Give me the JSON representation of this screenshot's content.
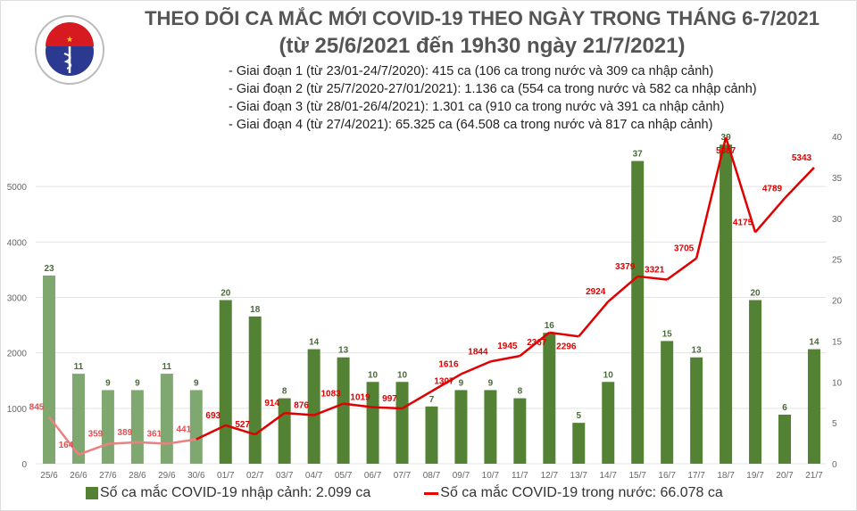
{
  "logo": {
    "text_top": "BỘ Y TẾ",
    "text_bottom": "MINISTRY OF HEALTH"
  },
  "title": {
    "line1": "THEO DÕI CA MẮC MỚI COVID-19 THEO NGÀY TRONG THÁNG 6-7/2021",
    "line2": "(từ 25/6/2021 đến 19h30 ngày 21/7/2021)"
  },
  "notes": [
    "- Giai đoạn 1 (từ 23/01-24/7/2020): 415 ca (106 ca trong nước và 309 ca nhập cảnh)",
    "- Giai đoạn 2 (từ 25/7/2020-27/01/2021): 1.136 ca (554 ca trong nước và 582 ca nhập cảnh)",
    "- Giai đoạn 3 (từ 28/01-26/4/2021): 1.301 ca (910 ca trong nước và 391 ca nhập cảnh)",
    "- Giai đoạn 4 (từ 27/4/2021): 65.325 ca (64.508 ca trong nước và 817 ca nhập cảnh)"
  ],
  "chart_data": {
    "type": "bar+line",
    "categories": [
      "25/6",
      "26/6",
      "27/6",
      "28/6",
      "29/6",
      "30/6",
      "01/7",
      "02/7",
      "03/7",
      "04/7",
      "05/7",
      "06/7",
      "07/7",
      "08/7",
      "09/7",
      "10/7",
      "11/7",
      "12/7",
      "13/7",
      "14/7",
      "15/7",
      "16/7",
      "17/7",
      "18/7",
      "19/7",
      "20/7",
      "21/7"
    ],
    "series": [
      {
        "name": "Số ca mắc COVID-19 nhập cảnh: 2.099 ca",
        "type": "bar",
        "axis": "right",
        "color": "#548235",
        "faded_color": "#7fa870",
        "values": [
          23,
          11,
          9,
          9,
          11,
          9,
          20,
          18,
          8,
          14,
          13,
          10,
          10,
          7,
          9,
          9,
          8,
          16,
          5,
          10,
          37,
          15,
          13,
          39,
          20,
          6,
          14
        ]
      },
      {
        "name": "Số ca mắc COVID-19 trong nước: 66.078 ca",
        "type": "line",
        "axis": "left",
        "color": "#e00000",
        "faded_color": "#ec8080",
        "values": [
          845,
          164,
          359,
          389,
          361,
          441,
          693,
          527,
          914,
          876,
          1083,
          1019,
          997,
          1307,
          1616,
          1844,
          1945,
          2367,
          2296,
          2924,
          3379,
          3321,
          3705,
          5887,
          4175,
          4789,
          5343
        ]
      }
    ],
    "faded_count": 6,
    "y_left": {
      "range": [
        0,
        6000
      ],
      "ticks": [
        0,
        1000,
        2000,
        3000,
        4000,
        5000
      ]
    },
    "y_right": {
      "range": [
        0,
        40
      ],
      "ticks": [
        0,
        5,
        10,
        15,
        20,
        25,
        30,
        35,
        40
      ]
    },
    "grid": true,
    "legend": "bottom"
  }
}
